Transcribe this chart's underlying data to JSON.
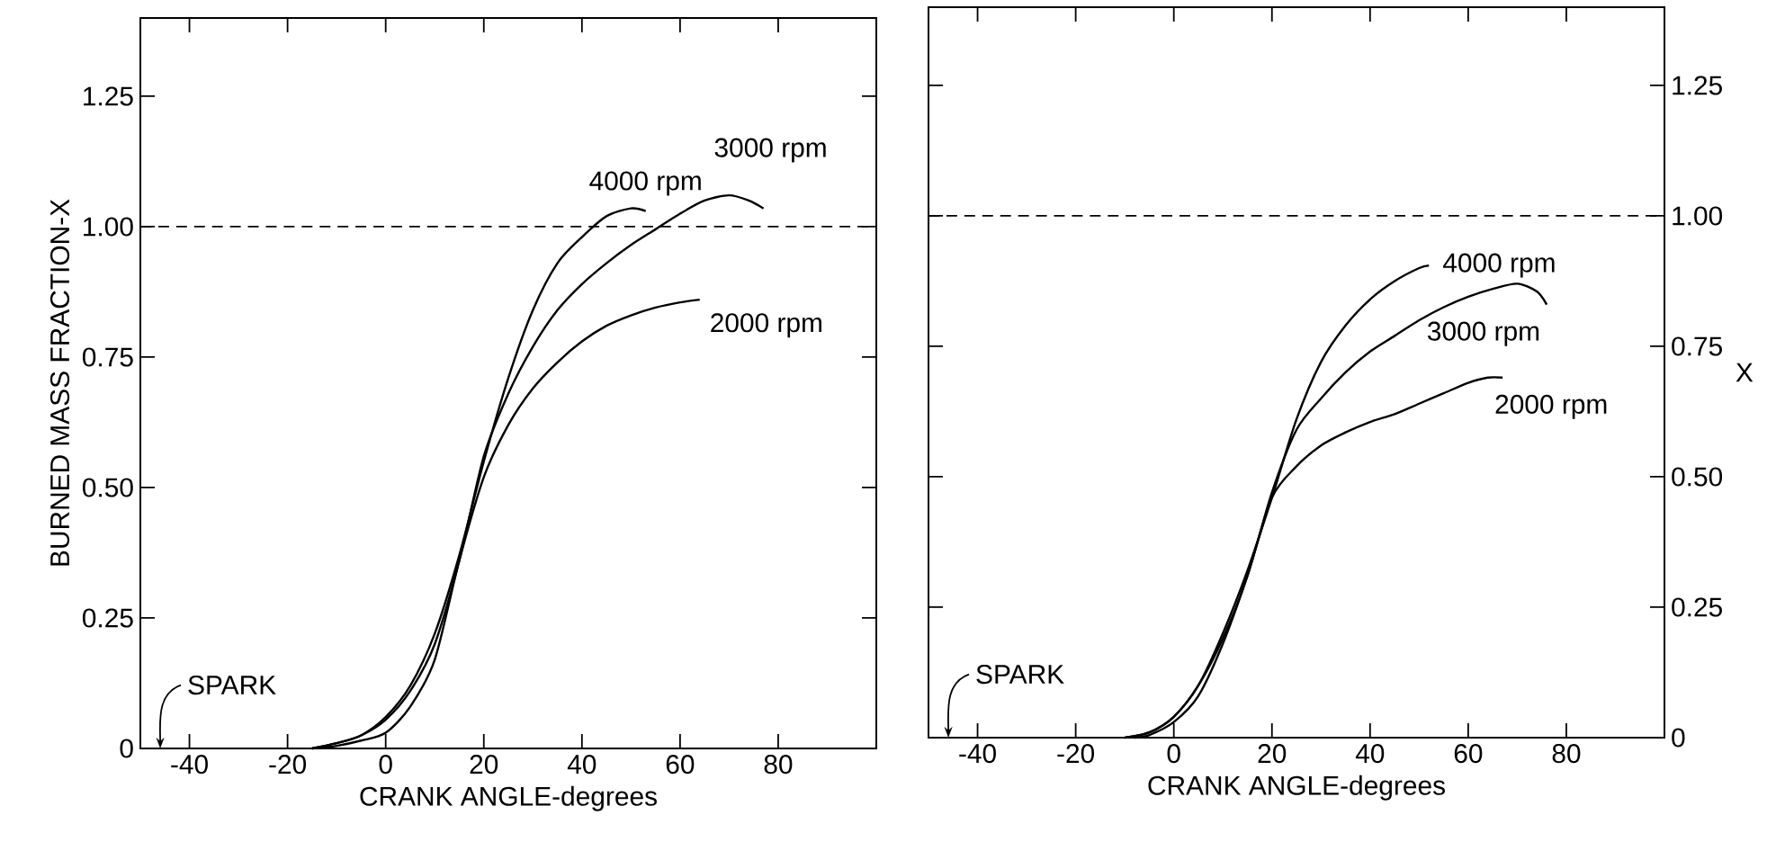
{
  "chart_data": [
    {
      "type": "line",
      "xlabel": "CRANK ANGLE-degrees",
      "ylabel": "BURNED MASS FRACTION-X",
      "xlim": [
        -50,
        100
      ],
      "ylim": [
        0,
        1.4
      ],
      "xticks": [
        -40,
        -20,
        0,
        20,
        40,
        60,
        80
      ],
      "yticks": [
        0,
        0.25,
        {
          "value": 0.5,
          "label": "0.50"
        },
        0.75,
        {
          "value": 1,
          "label": "1.00"
        },
        1.25
      ],
      "line_style": "solid",
      "ref_lines": [
        {
          "axis": "y",
          "value": 1,
          "line_style": "dashed"
        }
      ],
      "annotations": [
        "SPARK"
      ],
      "series": [
        {
          "name": "4000 rpm",
          "color": "#000000",
          "x": [
            -15,
            -10,
            -5,
            0,
            5,
            10,
            15,
            20,
            25,
            30,
            35,
            40,
            45,
            50,
            53
          ],
          "values": [
            0,
            0.01,
            0.025,
            0.06,
            0.12,
            0.22,
            0.37,
            0.55,
            0.71,
            0.84,
            0.93,
            0.98,
            1.02,
            1.035,
            1.03
          ]
        },
        {
          "name": "3000 rpm",
          "color": "#000000",
          "x": [
            -15,
            -10,
            -5,
            0,
            5,
            10,
            15,
            20,
            25,
            30,
            35,
            40,
            45,
            50,
            55,
            60,
            65,
            70,
            74,
            77
          ],
          "values": [
            0,
            0.01,
            0.025,
            0.055,
            0.11,
            0.2,
            0.36,
            0.56,
            0.68,
            0.77,
            0.84,
            0.89,
            0.93,
            0.965,
            0.995,
            1.025,
            1.05,
            1.06,
            1.05,
            1.035
          ]
        },
        {
          "name": "2000 rpm",
          "color": "#000000",
          "x": [
            -15,
            -10,
            -5,
            0,
            5,
            10,
            15,
            20,
            25,
            30,
            35,
            40,
            45,
            50,
            55,
            60,
            64
          ],
          "values": [
            0,
            0.005,
            0.015,
            0.03,
            0.08,
            0.17,
            0.36,
            0.52,
            0.62,
            0.69,
            0.74,
            0.78,
            0.81,
            0.83,
            0.845,
            0.855,
            0.86
          ]
        }
      ]
    },
    {
      "type": "line",
      "xlabel": "CRANK ANGLE-degrees",
      "y2label": "X",
      "xlim": [
        -50,
        100
      ],
      "y2lim": [
        0,
        1.4
      ],
      "xticks": [
        -40,
        -20,
        0,
        20,
        40,
        60,
        80
      ],
      "y2ticks": [
        0,
        0.25,
        {
          "value": 0.5,
          "label": "0.50"
        },
        0.75,
        {
          "value": 1,
          "label": "1.00"
        },
        1.25
      ],
      "line_style": "solid",
      "ref_lines": [
        {
          "axis": "y2",
          "value": 1,
          "line_style": "dashed"
        }
      ],
      "annotations": [
        "SPARK"
      ],
      "series": [
        {
          "name": "4000 rpm",
          "color": "#000000",
          "axis": "y2",
          "x": [
            -10,
            -5,
            0,
            5,
            10,
            15,
            20,
            25,
            30,
            35,
            40,
            45,
            50,
            52
          ],
          "values": [
            0,
            0.01,
            0.04,
            0.1,
            0.2,
            0.32,
            0.46,
            0.61,
            0.72,
            0.79,
            0.84,
            0.875,
            0.9,
            0.905
          ]
        },
        {
          "name": "3000 rpm",
          "color": "#000000",
          "axis": "y2",
          "x": [
            -10,
            -5,
            0,
            5,
            10,
            15,
            20,
            25,
            30,
            35,
            40,
            45,
            50,
            55,
            60,
            65,
            70,
            74,
            76
          ],
          "values": [
            0,
            0.01,
            0.04,
            0.1,
            0.19,
            0.31,
            0.47,
            0.59,
            0.65,
            0.7,
            0.74,
            0.77,
            0.8,
            0.825,
            0.845,
            0.86,
            0.87,
            0.855,
            0.83
          ]
        },
        {
          "name": "2000 rpm",
          "color": "#000000",
          "axis": "y2",
          "x": [
            -8,
            -5,
            0,
            5,
            10,
            15,
            20,
            25,
            30,
            35,
            40,
            45,
            50,
            55,
            60,
            64,
            67
          ],
          "values": [
            0,
            0.005,
            0.03,
            0.08,
            0.18,
            0.31,
            0.46,
            0.52,
            0.56,
            0.585,
            0.605,
            0.62,
            0.64,
            0.66,
            0.68,
            0.69,
            0.69
          ]
        }
      ]
    }
  ]
}
